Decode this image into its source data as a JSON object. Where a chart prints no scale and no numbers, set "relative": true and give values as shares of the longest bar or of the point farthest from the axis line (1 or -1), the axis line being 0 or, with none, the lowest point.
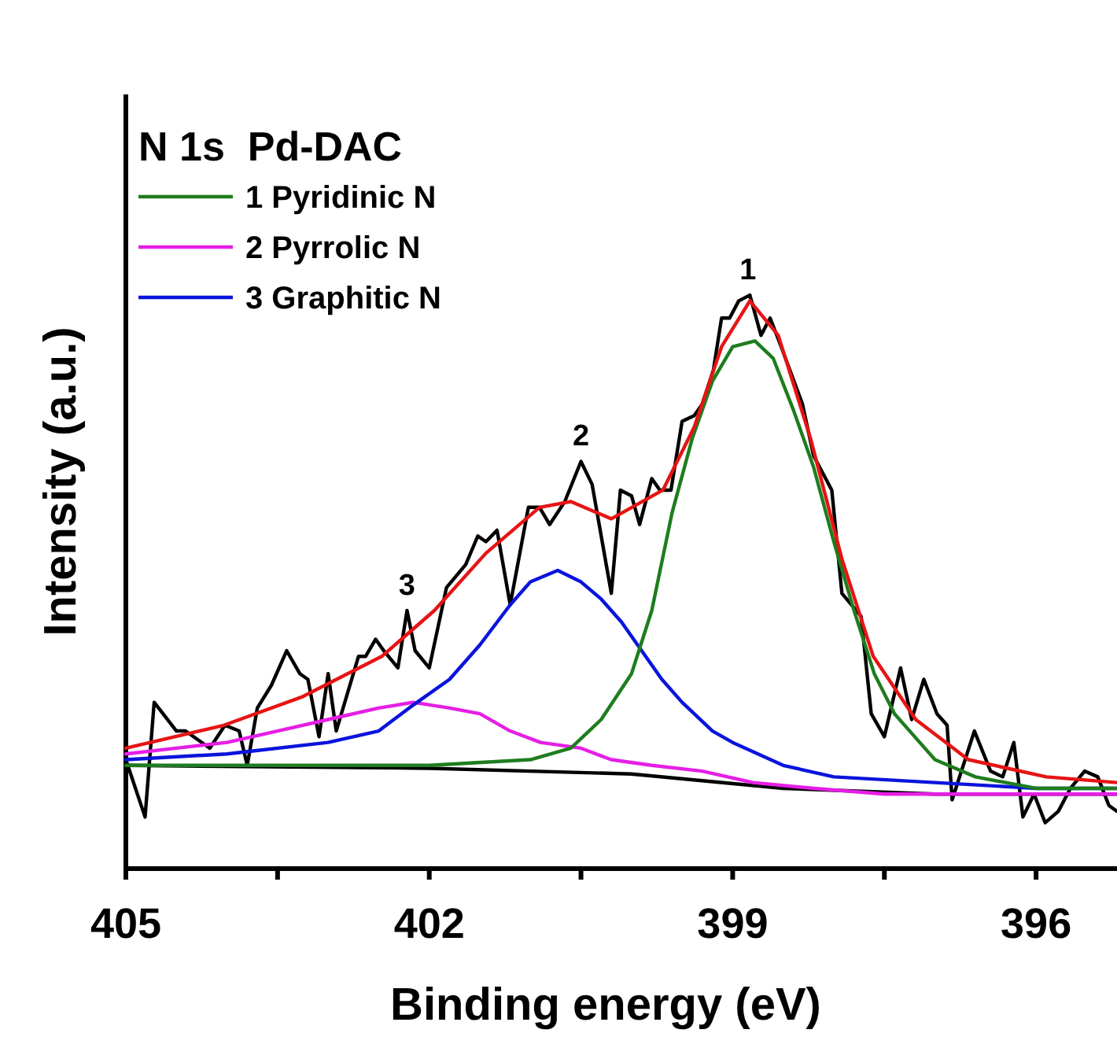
{
  "chart_data": {
    "type": "line",
    "title": "N 1s  Pd-DAC",
    "xlabel": "Binding energy (eV)",
    "ylabel": "Intensity (a.u.)",
    "relative": true,
    "xlim": [
      405,
      395.2
    ],
    "xticks": [
      405,
      {
        "value": 403.5,
        "label": null
      },
      402,
      {
        "value": 400.5,
        "label": null
      },
      399,
      {
        "value": 397.5,
        "label": null
      },
      396
    ],
    "grid": false,
    "legend": "top left",
    "marker": "none",
    "line_style": "solid",
    "annotations": [
      {
        "text": "1",
        "x": 398.85,
        "y": 1.0
      },
      {
        "text": "2",
        "x": 400.5,
        "y": 0.71
      },
      {
        "text": "3",
        "x": 402.22,
        "y": 0.45
      }
    ],
    "series": [
      {
        "color": "#000000",
        "x": [
          405.0,
          404.81,
          404.72,
          404.5,
          404.41,
          404.17,
          404.02,
          403.88,
          403.8,
          403.7,
          403.56,
          403.41,
          403.28,
          403.2,
          403.09,
          403.0,
          402.92,
          402.7,
          402.63,
          402.53,
          402.45,
          402.31,
          402.22,
          402.14,
          402.0,
          401.83,
          401.64,
          401.52,
          401.44,
          401.33,
          401.2,
          401.02,
          400.91,
          400.81,
          400.66,
          400.5,
          400.39,
          400.2,
          400.11,
          400.0,
          399.92,
          399.8,
          399.72,
          399.61,
          399.5,
          399.38,
          399.3,
          399.19,
          399.11,
          399.03,
          398.94,
          398.83,
          398.72,
          398.63,
          398.52,
          398.31,
          398.2,
          398.02,
          397.92,
          397.73,
          397.63,
          397.5,
          397.34,
          397.23,
          397.11,
          396.98,
          396.88,
          396.83,
          396.61,
          396.45,
          396.33,
          396.22,
          396.13,
          396.02,
          395.91,
          395.78,
          395.66,
          395.52,
          395.39,
          395.28,
          395.2
        ],
        "values": [
          0.19,
          0.09,
          0.29,
          0.24,
          0.24,
          0.21,
          0.25,
          0.24,
          0.18,
          0.28,
          0.32,
          0.38,
          0.34,
          0.33,
          0.23,
          0.34,
          0.24,
          0.37,
          0.37,
          0.4,
          0.38,
          0.35,
          0.45,
          0.38,
          0.35,
          0.49,
          0.53,
          0.58,
          0.57,
          0.59,
          0.46,
          0.63,
          0.63,
          0.6,
          0.64,
          0.71,
          0.67,
          0.48,
          0.66,
          0.65,
          0.6,
          0.68,
          0.66,
          0.66,
          0.78,
          0.79,
          0.81,
          0.87,
          0.96,
          0.96,
          0.99,
          1.0,
          0.93,
          0.96,
          0.91,
          0.81,
          0.72,
          0.66,
          0.48,
          0.44,
          0.27,
          0.23,
          0.35,
          0.26,
          0.33,
          0.27,
          0.25,
          0.12,
          0.24,
          0.17,
          0.16,
          0.22,
          0.09,
          0.13,
          0.08,
          0.1,
          0.14,
          0.17,
          0.16,
          0.11,
          0.1
        ]
      },
      {
        "color": "#000000",
        "x": [
          405,
          402,
          400,
          398.5,
          397,
          395.2
        ],
        "values": [
          0.18,
          0.175,
          0.165,
          0.14,
          0.13,
          0.13
        ]
      },
      {
        "name": "2 Pyrrolic N",
        "color": "#e61ee6",
        "x": [
          405,
          404.5,
          404,
          403.5,
          403,
          402.5,
          402.16,
          401.8,
          401.5,
          401.2,
          400.9,
          400.5,
          400.2,
          399.8,
          399.3,
          398.8,
          398.2,
          397.5,
          396,
          395.2
        ],
        "values": [
          0.2,
          0.21,
          0.22,
          0.24,
          0.26,
          0.28,
          0.29,
          0.28,
          0.27,
          0.24,
          0.22,
          0.21,
          0.19,
          0.18,
          0.17,
          0.15,
          0.14,
          0.13,
          0.13,
          0.13
        ]
      },
      {
        "name": "3 Graphitic N",
        "color": "#0a14dc",
        "x": [
          405,
          404,
          403,
          402.5,
          402.2,
          401.8,
          401.5,
          401.2,
          401.0,
          400.73,
          400.5,
          400.3,
          400.1,
          399.9,
          399.7,
          399.5,
          399.2,
          399.0,
          398.5,
          398,
          397,
          396,
          395.2
        ],
        "values": [
          0.19,
          0.2,
          0.22,
          0.24,
          0.28,
          0.33,
          0.39,
          0.46,
          0.5,
          0.52,
          0.5,
          0.47,
          0.43,
          0.38,
          0.33,
          0.29,
          0.24,
          0.22,
          0.18,
          0.16,
          0.15,
          0.14,
          0.14
        ]
      },
      {
        "name": "1 Pyridinic N",
        "color": "#1e7d1e",
        "x": [
          405,
          402,
          401,
          400.6,
          400.3,
          400.0,
          399.8,
          399.6,
          399.4,
          399.2,
          399.0,
          398.78,
          398.6,
          398.4,
          398.2,
          398.0,
          397.8,
          397.6,
          397.4,
          397.2,
          397.0,
          396.6,
          396,
          395.2
        ],
        "values": [
          0.18,
          0.18,
          0.19,
          0.21,
          0.26,
          0.34,
          0.45,
          0.62,
          0.75,
          0.85,
          0.91,
          0.92,
          0.89,
          0.8,
          0.7,
          0.57,
          0.45,
          0.34,
          0.27,
          0.23,
          0.19,
          0.16,
          0.14,
          0.14
        ]
      },
      {
        "color": "#e61414",
        "x": [
          405,
          404.03,
          403.25,
          402.47,
          401.95,
          401.44,
          400.91,
          400.6,
          400.2,
          399.69,
          399.38,
          399.11,
          398.83,
          398.55,
          398.23,
          397.92,
          397.61,
          397.19,
          396.67,
          395.9,
          395.2
        ],
        "values": [
          0.21,
          0.25,
          0.3,
          0.37,
          0.45,
          0.55,
          0.63,
          0.64,
          0.61,
          0.66,
          0.77,
          0.91,
          0.99,
          0.93,
          0.75,
          0.54,
          0.37,
          0.26,
          0.19,
          0.16,
          0.15
        ]
      }
    ]
  }
}
